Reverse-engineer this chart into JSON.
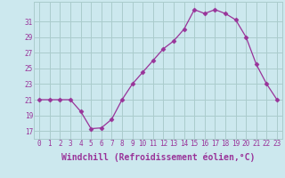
{
  "x": [
    0,
    1,
    2,
    3,
    4,
    5,
    6,
    7,
    8,
    9,
    10,
    11,
    12,
    13,
    14,
    15,
    16,
    17,
    18,
    19,
    20,
    21,
    22,
    23
  ],
  "y": [
    21,
    21,
    21,
    21,
    19.5,
    17.3,
    17.4,
    18.5,
    21,
    23,
    24.5,
    26,
    27.5,
    28.5,
    30,
    32.5,
    32,
    32.5,
    32,
    31.2,
    29,
    25.5,
    23,
    21
  ],
  "line_color": "#993399",
  "marker": "D",
  "marker_size": 2.5,
  "bg_color": "#cce8ee",
  "grid_color": "#aacccc",
  "xlabel": "Windchill (Refroidissement éolien,°C)",
  "xlim": [
    -0.5,
    23.5
  ],
  "ylim": [
    16,
    33.5
  ],
  "yticks": [
    17,
    19,
    21,
    23,
    25,
    27,
    29,
    31
  ],
  "xtick_labels": [
    "0",
    "1",
    "2",
    "3",
    "4",
    "5",
    "6",
    "7",
    "8",
    "9",
    "10",
    "11",
    "12",
    "13",
    "14",
    "15",
    "16",
    "17",
    "18",
    "19",
    "20",
    "21",
    "22",
    "23"
  ],
  "tick_color": "#993399",
  "tick_fontsize": 5.5,
  "xlabel_fontsize": 7.0,
  "figsize": [
    3.2,
    2.0
  ],
  "dpi": 100
}
